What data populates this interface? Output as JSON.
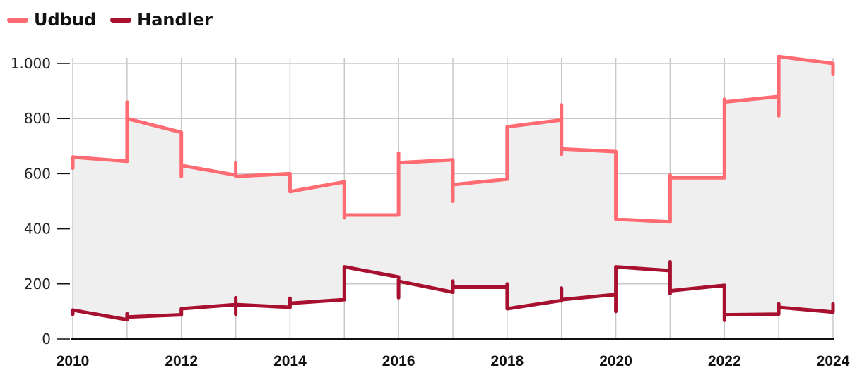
{
  "chart_data": {
    "type": "line",
    "x_range": [
      2010,
      2024
    ],
    "ylim": [
      0,
      1000
    ],
    "y_ticks": [
      0,
      200,
      400,
      600,
      800,
      1000
    ],
    "y_tick_labels": [
      "0",
      "200",
      "400",
      "600",
      "800",
      "1.000"
    ],
    "x_ticks": [
      2010,
      2012,
      2014,
      2016,
      2018,
      2020,
      2022,
      2024
    ],
    "x_tick_labels": [
      "2010",
      "2012",
      "2014",
      "2016",
      "2018",
      "2020",
      "2022",
      "2024"
    ],
    "grid": true,
    "legend_position": "top-left",
    "fill_between_series": true,
    "series": [
      {
        "name": "Udbud",
        "color": "#ff6b72",
        "points": [
          [
            2010,
            620
          ],
          [
            2010,
            660
          ],
          [
            2011,
            645
          ],
          [
            2011,
            860
          ],
          [
            2011,
            800
          ],
          [
            2012,
            750
          ],
          [
            2012,
            590
          ],
          [
            2012,
            630
          ],
          [
            2013,
            595
          ],
          [
            2013,
            640
          ],
          [
            2013,
            590
          ],
          [
            2014,
            600
          ],
          [
            2014,
            560
          ],
          [
            2014,
            535
          ],
          [
            2015,
            570
          ],
          [
            2015,
            480
          ],
          [
            2015,
            440
          ],
          [
            2015,
            450
          ],
          [
            2016,
            450
          ],
          [
            2016,
            675
          ],
          [
            2016,
            640
          ],
          [
            2017,
            650
          ],
          [
            2017,
            500
          ],
          [
            2017,
            560
          ],
          [
            2018,
            580
          ],
          [
            2018,
            710
          ],
          [
            2018,
            770
          ],
          [
            2019,
            795
          ],
          [
            2019,
            850
          ],
          [
            2019,
            670
          ],
          [
            2019,
            690
          ],
          [
            2020,
            680
          ],
          [
            2020,
            640
          ],
          [
            2020,
            435
          ],
          [
            2021,
            425
          ],
          [
            2021,
            595
          ],
          [
            2021,
            585
          ],
          [
            2022,
            585
          ],
          [
            2022,
            870
          ],
          [
            2022,
            860
          ],
          [
            2023,
            880
          ],
          [
            2023,
            810
          ],
          [
            2023,
            1025
          ],
          [
            2024,
            1000
          ],
          [
            2024,
            960
          ]
        ]
      },
      {
        "name": "Handler",
        "color": "#a8102f",
        "points": [
          [
            2010,
            90
          ],
          [
            2010,
            105
          ],
          [
            2011,
            70
          ],
          [
            2011,
            92
          ],
          [
            2011,
            80
          ],
          [
            2012,
            88
          ],
          [
            2012,
            100
          ],
          [
            2012,
            110
          ],
          [
            2013,
            125
          ],
          [
            2013,
            150
          ],
          [
            2013,
            90
          ],
          [
            2013,
            125
          ],
          [
            2014,
            115
          ],
          [
            2014,
            148
          ],
          [
            2014,
            130
          ],
          [
            2015,
            143
          ],
          [
            2015,
            262
          ],
          [
            2016,
            225
          ],
          [
            2016,
            150
          ],
          [
            2016,
            210
          ],
          [
            2017,
            170
          ],
          [
            2017,
            210
          ],
          [
            2017,
            188
          ],
          [
            2018,
            188
          ],
          [
            2018,
            200
          ],
          [
            2018,
            110
          ],
          [
            2019,
            140
          ],
          [
            2019,
            185
          ],
          [
            2019,
            138
          ],
          [
            2019,
            143
          ],
          [
            2020,
            162
          ],
          [
            2020,
            100
          ],
          [
            2020,
            262
          ],
          [
            2021,
            248
          ],
          [
            2021,
            280
          ],
          [
            2021,
            165
          ],
          [
            2021,
            175
          ],
          [
            2022,
            195
          ],
          [
            2022,
            68
          ],
          [
            2022,
            88
          ],
          [
            2023,
            90
          ],
          [
            2023,
            128
          ],
          [
            2023,
            115
          ],
          [
            2024,
            98
          ],
          [
            2024,
            128
          ]
        ]
      }
    ]
  }
}
